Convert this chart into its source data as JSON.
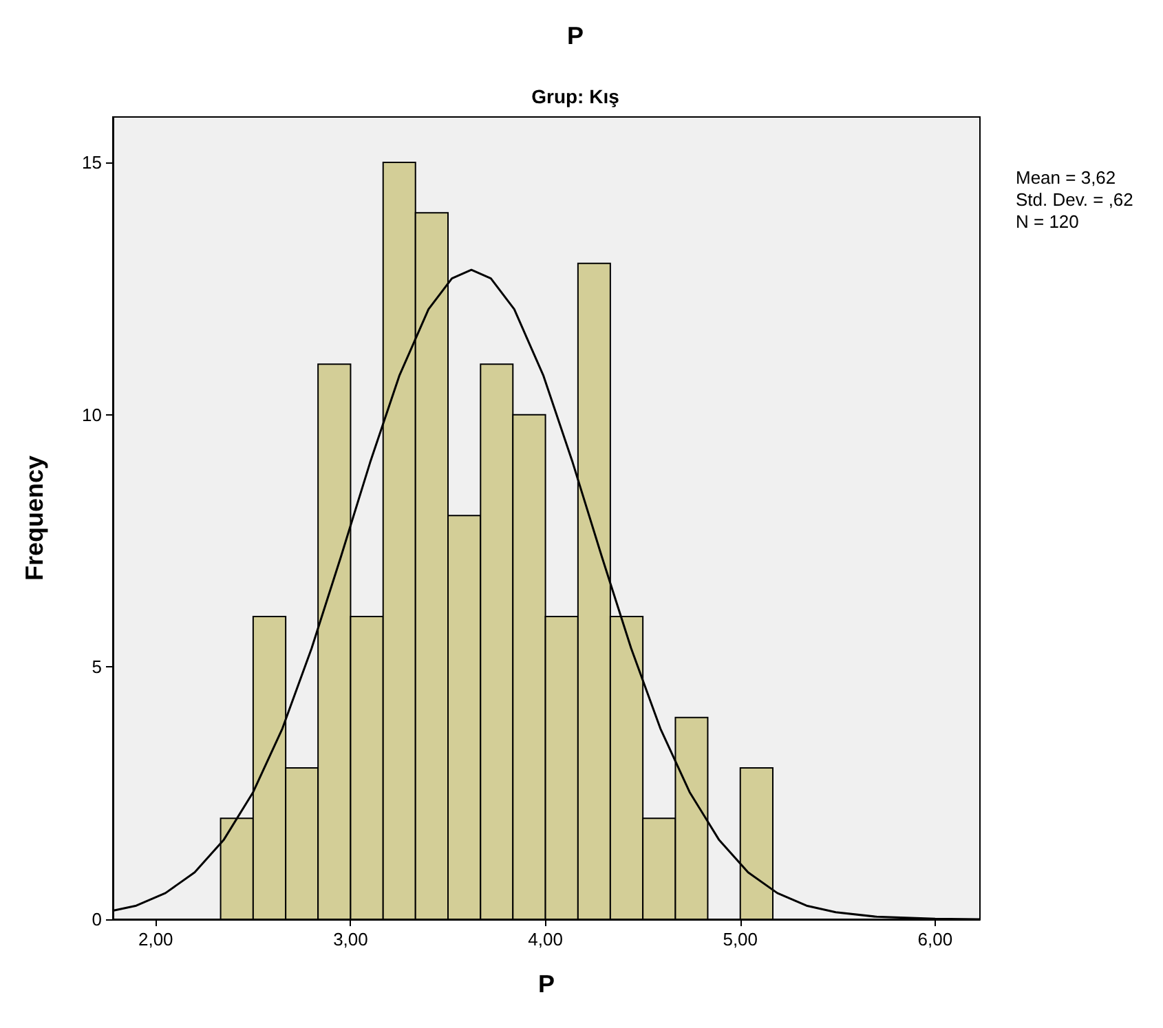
{
  "chart_data": {
    "type": "histogram",
    "title": "P",
    "subtitle": "Grup: Kış",
    "xlabel": "P",
    "ylabel": "Frequency",
    "bins": [
      2.333,
      2.5,
      2.667,
      2.833,
      3.0,
      3.167,
      3.333,
      3.5,
      3.667,
      3.833,
      4.0,
      4.167,
      4.333,
      4.5,
      4.667,
      4.833,
      5.0,
      5.167
    ],
    "values": [
      2,
      6,
      3,
      11,
      6,
      15,
      14,
      8,
      11,
      10,
      6,
      13,
      6,
      2,
      4,
      0,
      3
    ],
    "color": "#d3ce97",
    "series": [
      {
        "type": "line",
        "color": "#000000",
        "x": [
          1.78,
          1.9,
          2.05,
          2.2,
          2.35,
          2.5,
          2.65,
          2.8,
          2.95,
          3.1,
          3.25,
          3.4,
          3.52,
          3.62,
          3.72,
          3.84,
          3.99,
          4.14,
          4.29,
          4.44,
          4.59,
          4.74,
          4.89,
          5.04,
          5.19,
          5.34,
          5.49,
          5.7,
          6.0,
          6.23
        ],
        "values": [
          0.17,
          0.27,
          0.52,
          0.93,
          1.58,
          2.52,
          3.78,
          5.37,
          7.18,
          9.05,
          10.77,
          12.09,
          12.7,
          12.87,
          12.7,
          12.09,
          10.77,
          9.05,
          7.18,
          5.37,
          3.78,
          2.52,
          1.58,
          0.93,
          0.52,
          0.27,
          0.14,
          0.05,
          0.01,
          0.0
        ]
      }
    ],
    "annotations": [
      "Mean = 3,62",
      "Std. Dev. = ,62",
      "N = 120"
    ],
    "xlim": [
      1.78,
      6.23
    ],
    "ylim": [
      0,
      15.9
    ],
    "xticks": [
      {
        "value": 2,
        "label": "2,00"
      },
      {
        "value": 3,
        "label": "3,00"
      },
      {
        "value": 4,
        "label": "4,00"
      },
      {
        "value": 5,
        "label": "5,00"
      },
      {
        "value": 6,
        "label": "6,00"
      }
    ],
    "yticks": [
      0,
      5,
      10,
      15
    ],
    "grid": false,
    "marker": "none",
    "line_style": "solid"
  }
}
